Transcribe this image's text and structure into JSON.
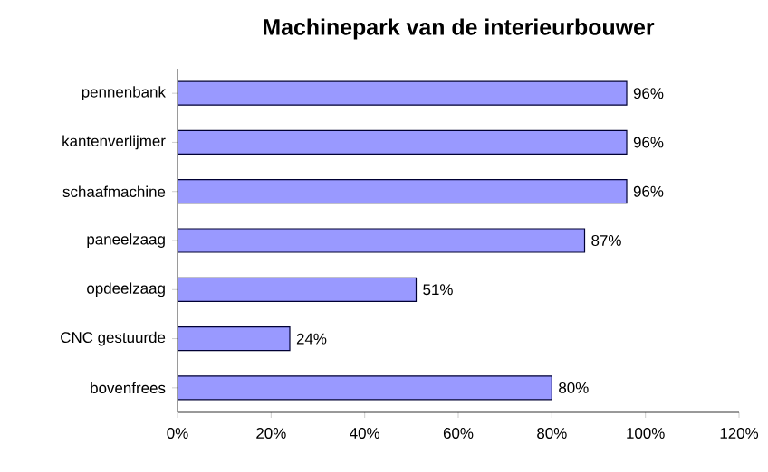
{
  "chart_data": {
    "type": "bar",
    "orientation": "horizontal",
    "title": "Machinepark van de interieurbouwer",
    "categories": [
      "pennenbank",
      "kantenverlijmer",
      "schaafmachine",
      "paneelzaag",
      "opdeelzaag",
      "CNC gestuurde",
      "bovenfrees"
    ],
    "values": [
      96,
      96,
      96,
      87,
      51,
      24,
      80
    ],
    "value_labels": [
      "96%",
      "96%",
      "96%",
      "87%",
      "51%",
      "24%",
      "80%"
    ],
    "color": "#9999ff",
    "xlim": [
      0,
      120
    ],
    "xticks": [
      {
        "value": 0,
        "label": "0%"
      },
      {
        "value": 20,
        "label": "20%"
      },
      {
        "value": 40,
        "label": "40%"
      },
      {
        "value": 60,
        "label": "60%"
      },
      {
        "value": 80,
        "label": "80%"
      },
      {
        "value": 100,
        "label": "100%"
      },
      {
        "value": 120,
        "label": "120%"
      }
    ]
  }
}
